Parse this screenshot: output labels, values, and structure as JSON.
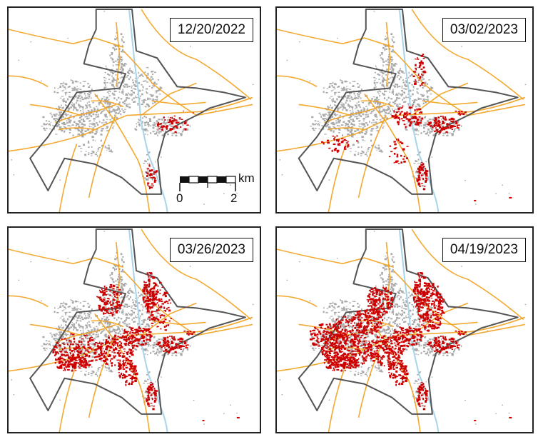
{
  "figure": {
    "panels": [
      {
        "date": "12/20/2022",
        "damage_level": 0.12
      },
      {
        "date": "03/02/2023",
        "damage_level": 0.38
      },
      {
        "date": "03/26/2023",
        "damage_level": 0.72
      },
      {
        "date": "04/19/2023",
        "damage_level": 1.0
      }
    ],
    "scale": {
      "unit": "km",
      "start_label": "0",
      "end_label": "2"
    },
    "colors": {
      "boundary": "#555555",
      "roads": "#f2a11c",
      "river": "#a8d4ec",
      "buildings": "#a9a9a9",
      "damage": "#cc0000"
    }
  }
}
